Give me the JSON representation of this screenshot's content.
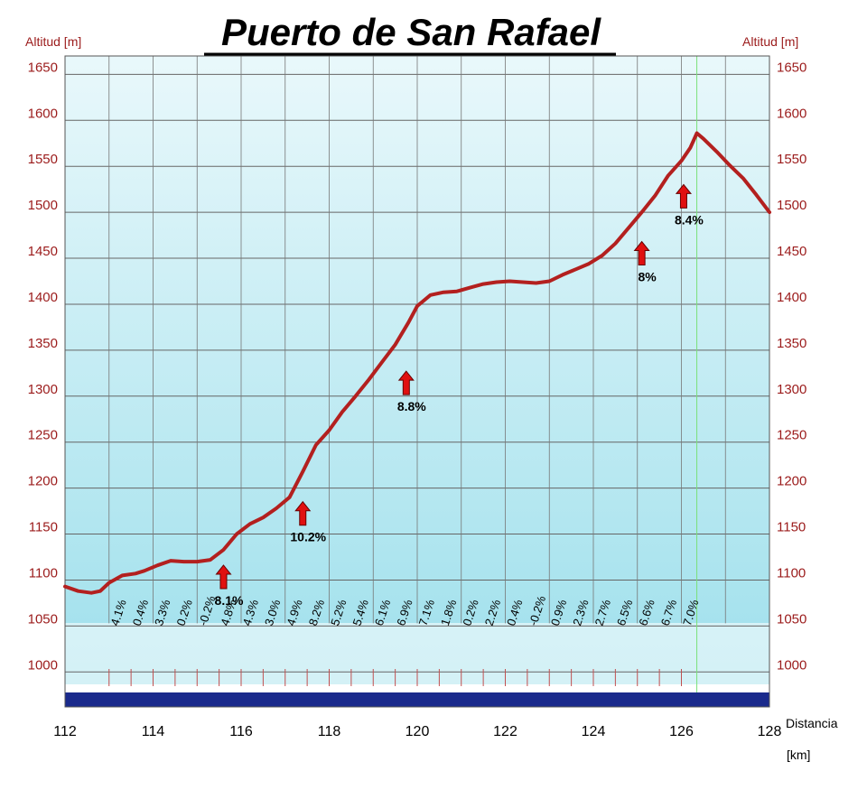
{
  "chart_data": {
    "type": "area",
    "title": "Puerto de San Rafael",
    "ylabel_left": "Altitud [m]",
    "ylabel_right": "Altitud [m]",
    "xlabel": "Distancia",
    "xunit": "[km]",
    "xlim": [
      112,
      128
    ],
    "ylim": [
      962,
      1670
    ],
    "x_ticks": [
      112,
      114,
      116,
      118,
      120,
      122,
      124,
      126,
      128
    ],
    "y_ticks": [
      1000,
      1050,
      1100,
      1150,
      1200,
      1250,
      1300,
      1350,
      1400,
      1450,
      1500,
      1550,
      1600,
      1650
    ],
    "grid": true,
    "colors": {
      "background_top": "#e9f8fb",
      "background_bottom": "#9fe0ec",
      "profile": "#b3201f",
      "arrow": "#e01010",
      "baseline": "#1a2a8c"
    },
    "summit_line_x": 126.35,
    "series": [
      {
        "x": [
          112.0,
          112.3,
          112.6,
          112.8,
          113.0,
          113.3,
          113.6,
          113.8,
          114.1,
          114.4,
          114.7,
          115.0,
          115.3,
          115.6,
          115.9,
          116.2,
          116.5,
          116.8,
          117.1,
          117.4,
          117.7,
          118.0,
          118.3,
          118.6,
          118.9,
          119.2,
          119.5,
          119.8,
          120.0,
          120.3,
          120.6,
          120.9,
          121.2,
          121.5,
          121.8,
          122.1,
          122.4,
          122.7,
          123.0,
          123.3,
          123.6,
          123.9,
          124.2,
          124.5,
          124.8,
          125.1,
          125.4,
          125.7,
          126.0,
          126.2,
          126.35,
          126.5,
          126.8,
          127.1,
          127.4,
          127.7,
          128.0
        ],
        "y": [
          1093,
          1088,
          1086,
          1088,
          1097,
          1105,
          1107,
          1110,
          1116,
          1121,
          1120,
          1120,
          1122,
          1133,
          1150,
          1161,
          1168,
          1178,
          1190,
          1218,
          1247,
          1263,
          1283,
          1300,
          1318,
          1337,
          1356,
          1380,
          1398,
          1410,
          1413,
          1414,
          1418,
          1422,
          1424,
          1425,
          1424,
          1423,
          1425,
          1432,
          1438,
          1444,
          1453,
          1466,
          1483,
          1500,
          1518,
          1540,
          1556,
          1570,
          1586,
          1580,
          1566,
          1551,
          1537,
          1519,
          1500
        ]
      }
    ],
    "grades": [
      "4.1%",
      "0.4%",
      "3.3%",
      "0.2%",
      "-0.2%",
      "4.8%",
      "4.3%",
      "3.0%",
      "4.9%",
      "8.2%",
      "5.2%",
      "5.4%",
      "6.1%",
      "6.9%",
      "7.1%",
      "1.8%",
      "0.2%",
      "2.2%",
      "0.4%",
      "-0.2%",
      "0.9%",
      "2.3%",
      "2.7%",
      "6.5%",
      "6.6%",
      "6.7%",
      "7.0%"
    ],
    "annotations": [
      {
        "x": 115.6,
        "y": 1126,
        "text": "8.1%"
      },
      {
        "x": 117.4,
        "y": 1195,
        "text": "10.2%"
      },
      {
        "x": 119.75,
        "y": 1337,
        "text": "8.8%"
      },
      {
        "x": 125.1,
        "y": 1478,
        "text": "8%"
      },
      {
        "x": 126.05,
        "y": 1540,
        "text": "8.4%"
      }
    ]
  }
}
